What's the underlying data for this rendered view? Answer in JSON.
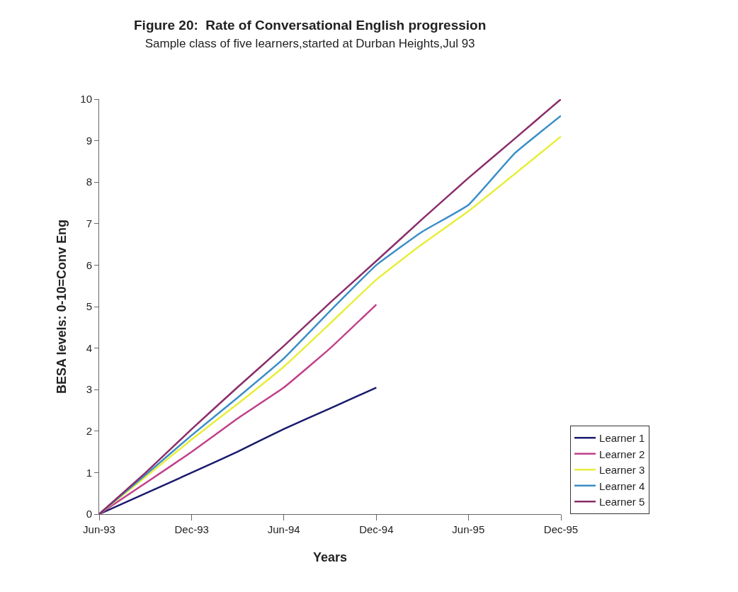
{
  "chart_data": {
    "type": "line",
    "title": "Figure 20:  Rate of Conversational English progression",
    "subtitle": "Sample class of five learners,started at Durban Heights,Jul 93",
    "xlabel": "Years",
    "ylabel": "BESA levels: 0-10=Conv Eng",
    "x": [
      "1993-06",
      "1993-09",
      "1993-12",
      "1994-03",
      "1994-06",
      "1994-09",
      "1994-12",
      "1995-03",
      "1995-06",
      "1995-09",
      "1995-12"
    ],
    "series": [
      {
        "name": "Learner 1",
        "color": "#1a1a6e",
        "values": [
          0,
          0.5,
          1.0,
          1.5,
          2.05,
          2.55,
          3.05,
          null,
          null,
          null,
          null
        ]
      },
      {
        "name": "Learner 2",
        "color": "#c0408a",
        "values": [
          0,
          0.75,
          1.5,
          2.3,
          3.05,
          4.0,
          5.05,
          null,
          null,
          null,
          null
        ]
      },
      {
        "name": "Learner 3",
        "color": "#e8ee3a",
        "values": [
          0,
          0.9,
          1.8,
          2.65,
          3.55,
          4.6,
          5.65,
          6.5,
          7.3,
          8.2,
          9.1
        ]
      },
      {
        "name": "Learner 4",
        "color": "#3a8ec8",
        "values": [
          0,
          0.95,
          1.9,
          2.8,
          3.75,
          4.9,
          6.0,
          6.8,
          7.45,
          8.7,
          9.6
        ]
      },
      {
        "name": "Learner 5",
        "color": "#8b2d6a",
        "values": [
          0,
          1.0,
          2.05,
          3.05,
          4.05,
          5.1,
          6.1,
          7.1,
          8.1,
          9.05,
          10.0
        ]
      }
    ],
    "xlim": [
      "1993-06",
      "1995-12"
    ],
    "xticks": [
      {
        "value": "1993-06",
        "label": "Jun-93"
      },
      {
        "value": "1993-12",
        "label": "Dec-93"
      },
      {
        "value": "1994-06",
        "label": "Jun-94"
      },
      {
        "value": "1994-12",
        "label": "Dec-94"
      },
      {
        "value": "1995-06",
        "label": "Jun-95"
      },
      {
        "value": "1995-12",
        "label": "Dec-95"
      }
    ],
    "ylim": [
      0,
      10
    ],
    "yticks": [
      0,
      1,
      2,
      3,
      4,
      5,
      6,
      7,
      8,
      9,
      10
    ],
    "legend": "right",
    "marker": "none",
    "line_style": "solid"
  }
}
